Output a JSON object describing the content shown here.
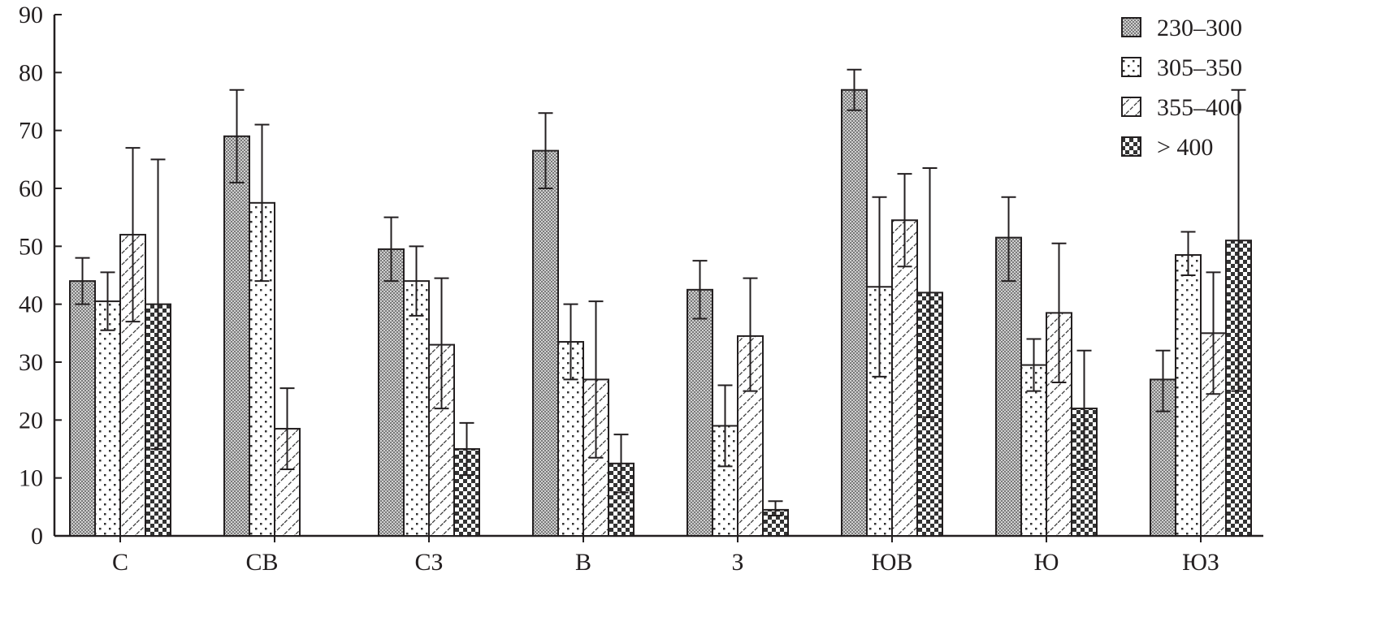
{
  "chart_data": {
    "type": "bar",
    "title": "",
    "xlabel": "",
    "ylabel": "",
    "ylim": [
      0,
      90
    ],
    "yticks": [
      "0",
      "10",
      "20",
      "30",
      "40",
      "50",
      "60",
      "70",
      "80",
      "90"
    ],
    "categories": [
      "С",
      "СВ",
      "СЗ",
      "В",
      "З",
      "ЮВ",
      "Ю",
      "ЮЗ"
    ],
    "legend_position": "top-right",
    "grid": false,
    "error_bars": true,
    "series": [
      {
        "name": "230–300",
        "pattern": "fine-checker",
        "values": [
          44,
          69,
          49.5,
          66.5,
          42.5,
          77,
          51.5,
          27
        ],
        "err_high": [
          48,
          77,
          55,
          73,
          47.5,
          80.5,
          58.5,
          32
        ],
        "err_low": [
          40,
          61,
          44,
          60,
          37.5,
          73.5,
          44,
          21.5
        ]
      },
      {
        "name": "305–350",
        "pattern": "dots",
        "values": [
          40.5,
          57.5,
          44,
          33.5,
          19,
          43,
          29.5,
          48.5
        ],
        "err_high": [
          45.5,
          71,
          50,
          40,
          26,
          58.5,
          34,
          52.5
        ],
        "err_low": [
          35.5,
          44,
          38,
          27,
          12,
          27.5,
          25,
          45
        ]
      },
      {
        "name": "355–400",
        "pattern": "diagonal-hatch",
        "values": [
          52,
          18.5,
          33,
          27,
          34.5,
          54.5,
          38.5,
          35
        ],
        "err_high": [
          67,
          25.5,
          44.5,
          40.5,
          44.5,
          62.5,
          50.5,
          45.5
        ],
        "err_low": [
          37,
          11.5,
          22,
          13.5,
          25,
          46.5,
          26.5,
          24.5
        ]
      },
      {
        "name": "> 400",
        "pattern": "coarse-checker",
        "values": [
          40,
          null,
          15,
          12.5,
          4.5,
          42,
          22,
          51
        ],
        "err_high": [
          65,
          null,
          19.5,
          17.5,
          6,
          63.5,
          32,
          77
        ],
        "err_low": [
          15,
          null,
          10.5,
          7.5,
          3.5,
          20.5,
          11.5,
          25
        ]
      }
    ],
    "colors": {
      "axis": "#231f20",
      "fill_dark": "#9a9a9a"
    }
  }
}
